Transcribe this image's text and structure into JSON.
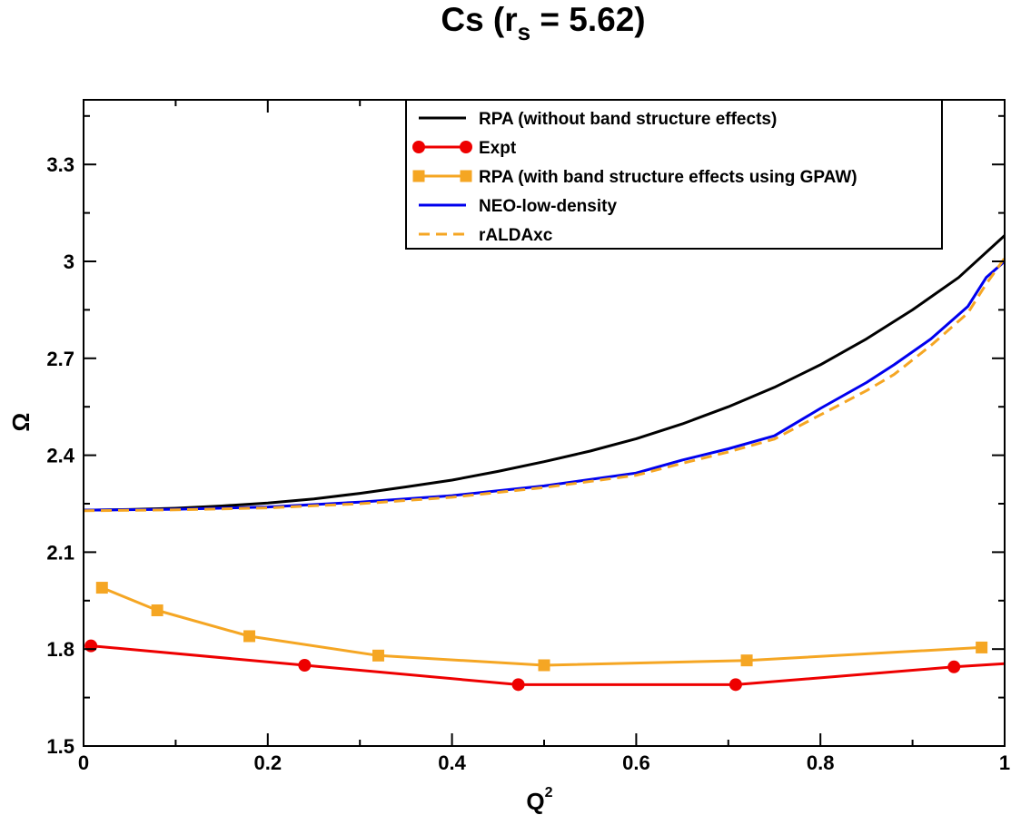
{
  "chart_data": {
    "type": "line",
    "title": "Cs (r",
    "title_sub": "s",
    "title_rest": " = 5.62)",
    "xlabel": "Q",
    "xlabel_sup": "2",
    "ylabel": "Ω",
    "xlim": [
      0,
      1
    ],
    "ylim": [
      1.5,
      3.5
    ],
    "x_ticks": [
      0,
      0.2,
      0.4,
      0.6,
      0.8,
      1
    ],
    "x_tick_labels": [
      "0",
      "0.2",
      "0.4",
      "0.6",
      "0.8",
      "1"
    ],
    "y_ticks": [
      1.5,
      1.8,
      2.1,
      2.4,
      2.7,
      3,
      3.3
    ],
    "y_tick_labels": [
      "1.5",
      "1.8",
      "2.1",
      "2.4",
      "2.7",
      "3",
      "3.3"
    ],
    "grid": false,
    "legend_position": "top-right",
    "series": [
      {
        "name": "RPA (without band structure effects)",
        "color": "#000000",
        "style": "solid",
        "marker": "none",
        "x": [
          0,
          0.05,
          0.1,
          0.15,
          0.2,
          0.25,
          0.3,
          0.35,
          0.4,
          0.45,
          0.5,
          0.55,
          0.6,
          0.65,
          0.7,
          0.75,
          0.8,
          0.85,
          0.9,
          0.95,
          1.0
        ],
        "y": [
          2.23,
          2.232,
          2.236,
          2.243,
          2.252,
          2.265,
          2.282,
          2.302,
          2.323,
          2.35,
          2.38,
          2.413,
          2.451,
          2.497,
          2.55,
          2.61,
          2.68,
          2.76,
          2.85,
          2.95,
          3.08
        ]
      },
      {
        "name": "Expt",
        "color": "#ee0000",
        "style": "solid",
        "marker": "circle",
        "x": [
          0.008,
          0.24,
          0.472,
          0.708,
          0.945,
          1.0
        ],
        "y": [
          1.81,
          1.75,
          1.69,
          1.69,
          1.745,
          1.755
        ]
      },
      {
        "name": "RPA (with band structure effects using GPAW)",
        "color": "#f5a623",
        "style": "solid",
        "marker": "square",
        "x": [
          0.02,
          0.08,
          0.18,
          0.32,
          0.5,
          0.72,
          0.975
        ],
        "y": [
          1.99,
          1.92,
          1.84,
          1.78,
          1.75,
          1.765,
          1.805
        ]
      },
      {
        "name": "NEO-low-density",
        "color": "#0000ee",
        "style": "solid",
        "marker": "none",
        "x": [
          0,
          0.1,
          0.2,
          0.3,
          0.4,
          0.5,
          0.6,
          0.65,
          0.7,
          0.75,
          0.8,
          0.85,
          0.88,
          0.92,
          0.96,
          0.98,
          1.0
        ],
        "y": [
          2.23,
          2.233,
          2.24,
          2.255,
          2.275,
          2.305,
          2.345,
          2.385,
          2.42,
          2.46,
          2.545,
          2.625,
          2.68,
          2.76,
          2.86,
          2.95,
          3.0
        ]
      },
      {
        "name": "rALDAxc",
        "color": "#f5a623",
        "style": "dashed",
        "marker": "none",
        "x": [
          0,
          0.1,
          0.2,
          0.3,
          0.4,
          0.5,
          0.6,
          0.65,
          0.7,
          0.75,
          0.8,
          0.85,
          0.88,
          0.92,
          0.96,
          0.98,
          1.0
        ],
        "y": [
          2.228,
          2.231,
          2.237,
          2.25,
          2.27,
          2.3,
          2.338,
          2.375,
          2.41,
          2.45,
          2.525,
          2.6,
          2.65,
          2.74,
          2.84,
          2.93,
          3.01
        ]
      }
    ]
  }
}
